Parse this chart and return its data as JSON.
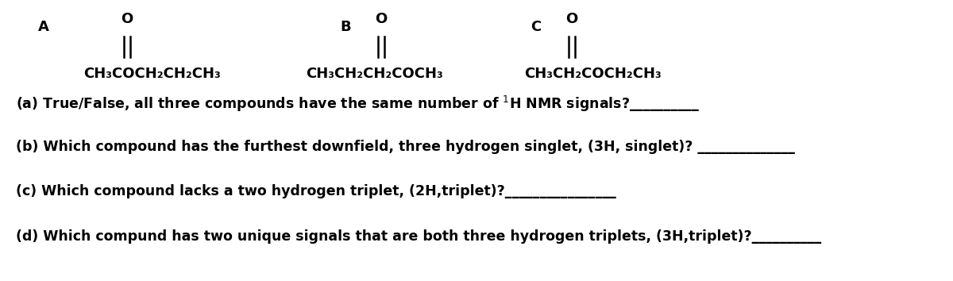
{
  "bg_color": "#ffffff",
  "figsize": [
    12.0,
    3.54
  ],
  "dpi": 100,
  "label_A": "A",
  "label_B": "B",
  "label_C": "C",
  "formula_A": "CH₃COCH₂CH₂CH₃",
  "formula_B": "CH₃CH₂CH₂COCH₃",
  "formula_C": "CH₃CH₂COCH₂CH₃",
  "font_bold_size": 13,
  "font_formula_size": 13,
  "font_question_size": 12.5,
  "font_O_size": 13,
  "font_family": "Arial"
}
